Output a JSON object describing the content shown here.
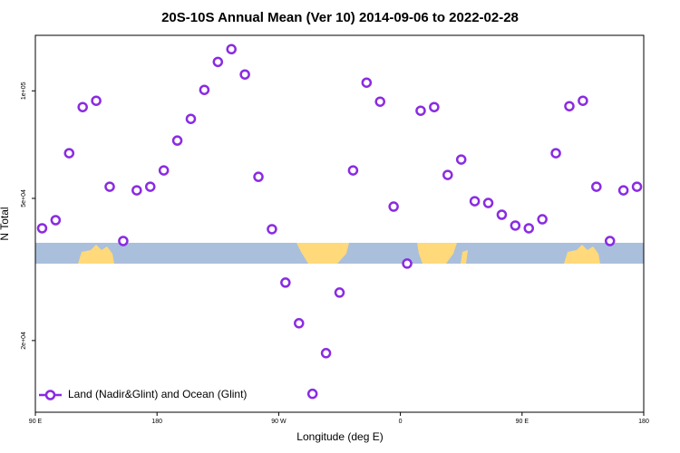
{
  "chart_data": {
    "type": "scatter",
    "title": "20S-10S Annual Mean (Ver 10)   2014-09-06 to 2022-02-28",
    "xlabel": "Longitude (deg E)",
    "ylabel": "N Total",
    "log_y": true,
    "xlim": [
      90,
      540
    ],
    "ylim": [
      12600,
      143000
    ],
    "xticks": [
      {
        "value": 90,
        "label": "90 E"
      },
      {
        "value": 180,
        "label": "180"
      },
      {
        "value": 270,
        "label": "90 W"
      },
      {
        "value": 360,
        "label": "0"
      },
      {
        "value": 450,
        "label": "90 E"
      },
      {
        "value": 540,
        "label": "180"
      }
    ],
    "yticks": [
      {
        "value": 20000,
        "label": "2e+04"
      },
      {
        "value": 50000,
        "label": "5e+04"
      },
      {
        "value": 100000,
        "label": "1e+05"
      }
    ],
    "legend_position": "lower left",
    "series": [
      {
        "name": "Land (Nadir&Glint) and Ocean (Glint)",
        "color": "#8a2be2",
        "x": [
          95,
          105,
          115,
          125,
          135,
          145,
          155,
          165,
          175,
          185,
          195,
          205,
          215,
          225,
          235,
          245,
          255,
          265,
          275,
          285,
          295,
          305,
          315,
          325,
          335,
          345,
          355,
          365,
          375,
          385,
          395,
          405,
          415,
          425,
          435,
          445,
          455,
          465,
          475,
          485,
          495,
          505,
          515,
          525,
          535
        ],
        "values": [
          41230,
          43450,
          66890,
          90040,
          93800,
          53900,
          37990,
          52660,
          53900,
          59880,
          72580,
          83460,
          100600,
          120500,
          130800,
          111100,
          57460,
          41000,
          29060,
          22360,
          14190,
          18440,
          27250,
          59880,
          105400,
          93250,
          47420,
          32850,
          87970,
          90040,
          58150,
          64220,
          49100,
          48540,
          45000,
          41960,
          41230,
          43700,
          66890,
          90570,
          93800,
          53900,
          37990,
          52660,
          53900
        ]
      }
    ]
  }
}
